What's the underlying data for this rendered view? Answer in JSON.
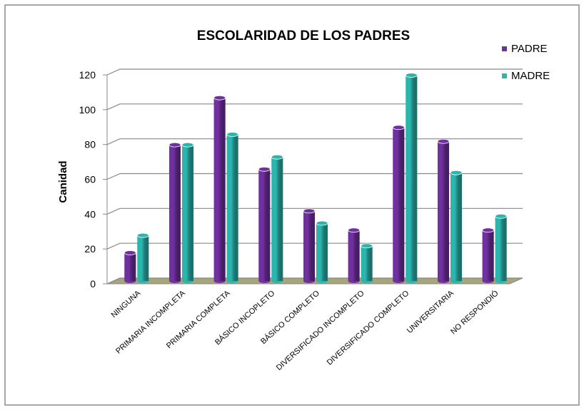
{
  "chart_data": {
    "type": "bar",
    "title": "ESCOLARIDAD DE LOS PADRES",
    "y_label": "Canidad",
    "categories": [
      "NINGUNA",
      "PRIMARIA INCOMPLETA",
      "PRIMARIA COMPLETA",
      "BÁSICO INCOPLETO",
      "BÁSICO COMPLETO",
      "DIVERSIFICADO INCOMPLETO",
      "DIVERSIFICADO COMPLETO",
      "UNIVERSITARIA",
      "NO RESPONDIÓ"
    ],
    "series": [
      {
        "name": "PADRE",
        "color": "#7030a0",
        "values": [
          17,
          79,
          106,
          65,
          41,
          30,
          89,
          81,
          30
        ]
      },
      {
        "name": "MADRE",
        "color": "#2cb5ad",
        "values": [
          27,
          79,
          85,
          72,
          34,
          21,
          119,
          63,
          38
        ]
      }
    ],
    "ylim": [
      0,
      120
    ],
    "yticks": [
      0,
      20,
      40,
      60,
      80,
      100,
      120
    ],
    "grid": true,
    "legend": "right"
  }
}
